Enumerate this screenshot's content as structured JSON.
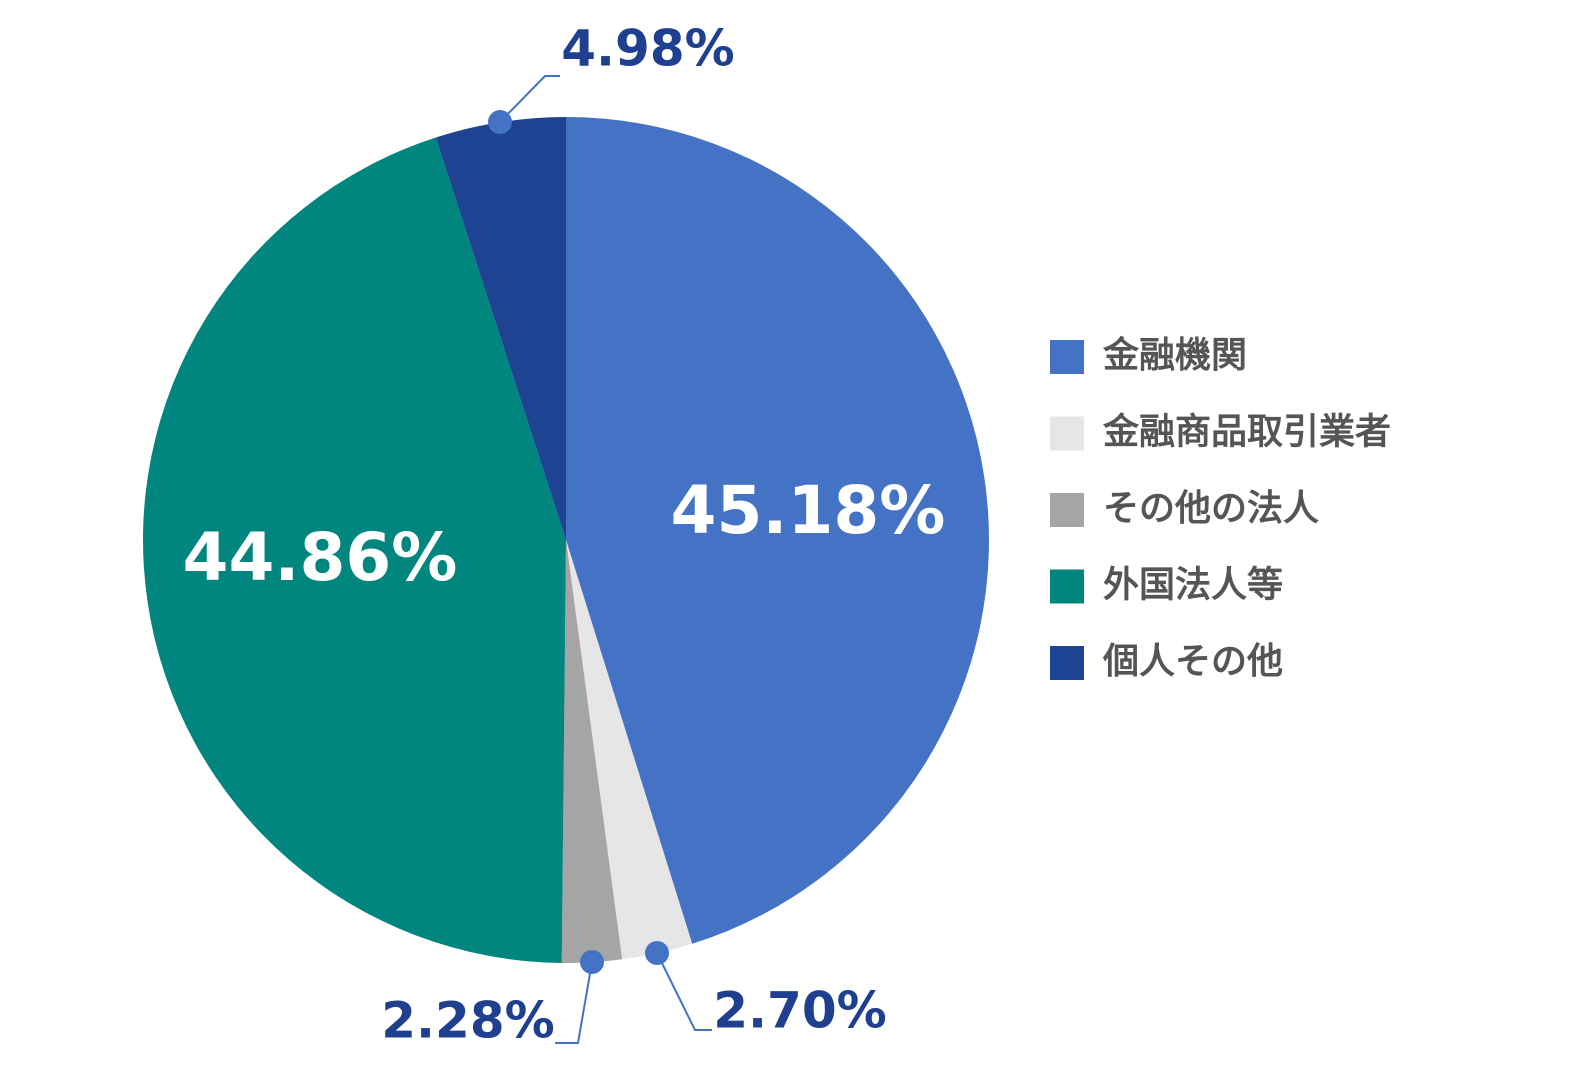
{
  "chart_data": {
    "type": "pie",
    "categories": [
      "金融機関",
      "金融商品取引業者",
      "その他の法人",
      "外国法人等",
      "個人その他"
    ],
    "values": [
      45.18,
      2.7,
      2.28,
      44.86,
      4.98
    ],
    "value_labels": [
      "45.18%",
      "2.70%",
      "2.28%",
      "44.86%",
      "4.98%"
    ],
    "colors": [
      "#4472c4",
      "#e7e6e6",
      "#a5a5a5",
      "#00857f",
      "#1f4393"
    ],
    "legend": "right"
  }
}
